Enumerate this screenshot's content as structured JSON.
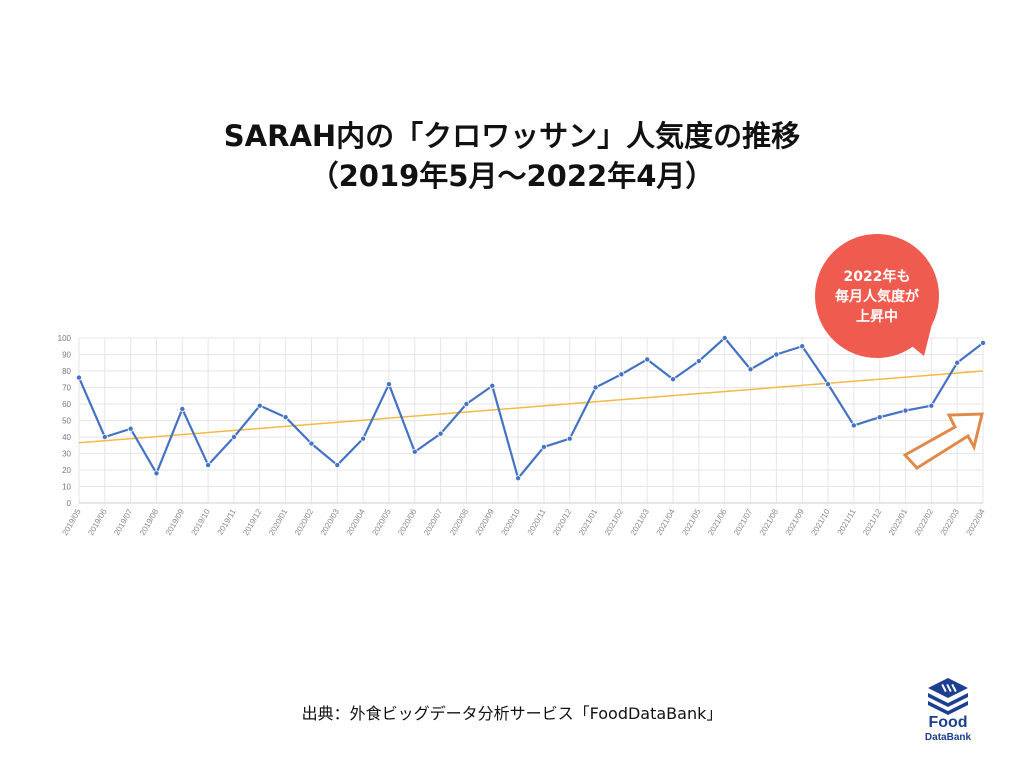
{
  "title": {
    "line1": "SARAH内の「クロワッサン」人気度の推移",
    "line2": "（2019年5月〜2022年4月）"
  },
  "callout": {
    "lines": [
      "2022年も",
      "毎月人気度が",
      "上昇中"
    ],
    "color": "#ef5b4f"
  },
  "source_text": "出典：外食ビッグデータ分析サービス「FoodDataBank」",
  "logo": {
    "icon": "food-databank-logo-icon",
    "line1": "Food",
    "line2": "DataBank",
    "color": "#1c3f8f"
  },
  "colors": {
    "line": "#4472c4",
    "trend": "#f4b942",
    "arrow": "#e08a4a",
    "grid": "#e6e6e6"
  },
  "chart_data": {
    "type": "line",
    "ylim": [
      0,
      100
    ],
    "yticks": [
      0,
      10,
      20,
      30,
      40,
      50,
      60,
      70,
      80,
      90,
      100
    ],
    "grid": true,
    "categories": [
      "2019/05",
      "2019/06",
      "2019/07",
      "2019/08",
      "2019/09",
      "2019/10",
      "2019/11",
      "2019/12",
      "2020/01",
      "2020/02",
      "2020/03",
      "2020/04",
      "2020/05",
      "2020/06",
      "2020/07",
      "2020/08",
      "2020/09",
      "2020/10",
      "2020/11",
      "2020/12",
      "2021/01",
      "2021/02",
      "2021/03",
      "2021/04",
      "2021/05",
      "2021/06",
      "2021/07",
      "2021/08",
      "2021/09",
      "2021/10",
      "2021/11",
      "2021/12",
      "2022/01",
      "2022/02",
      "2022/03",
      "2022/04"
    ],
    "series": [
      {
        "values": [
          76,
          40,
          45,
          18,
          57,
          23,
          40,
          59,
          52,
          36,
          23,
          39,
          72,
          31,
          42,
          60,
          71,
          15,
          34,
          39,
          70,
          78,
          87,
          75,
          86,
          100,
          81,
          90,
          95,
          72,
          47,
          52,
          56,
          59,
          85,
          97
        ]
      }
    ],
    "trendline": {
      "start": 36.5,
      "end": 80
    }
  }
}
